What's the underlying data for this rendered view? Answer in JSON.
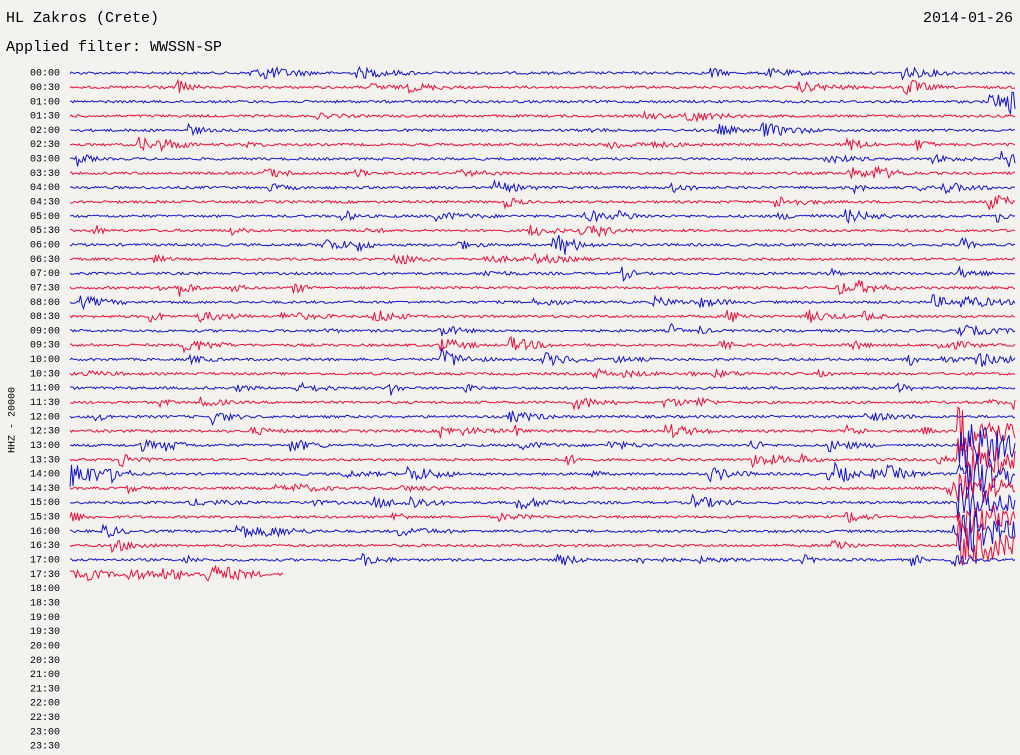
{
  "header": {
    "station": "HL Zakros (Crete)",
    "date": "2014-01-26",
    "filter": "Applied filter: WWSSN-SP"
  },
  "axis_label": "HHZ - 20000",
  "rows": [
    "00:00",
    "00:30",
    "01:00",
    "01:30",
    "02:00",
    "02:30",
    "03:00",
    "03:30",
    "04:00",
    "04:30",
    "05:00",
    "05:30",
    "06:00",
    "06:30",
    "07:00",
    "07:30",
    "08:00",
    "08:30",
    "09:00",
    "09:30",
    "10:00",
    "10:30",
    "11:00",
    "11:30",
    "12:00",
    "12:30",
    "13:00",
    "13:30",
    "14:00",
    "14:30",
    "15:00",
    "15:30",
    "16:00",
    "16:30",
    "17:00",
    "17:30",
    "18:00",
    "18:30",
    "19:00",
    "19:30",
    "20:00",
    "20:30",
    "21:00",
    "21:30",
    "22:00",
    "22:30",
    "23:00",
    "23:30"
  ],
  "trace_colors": [
    "#1414c8",
    "#e8103c"
  ]
}
